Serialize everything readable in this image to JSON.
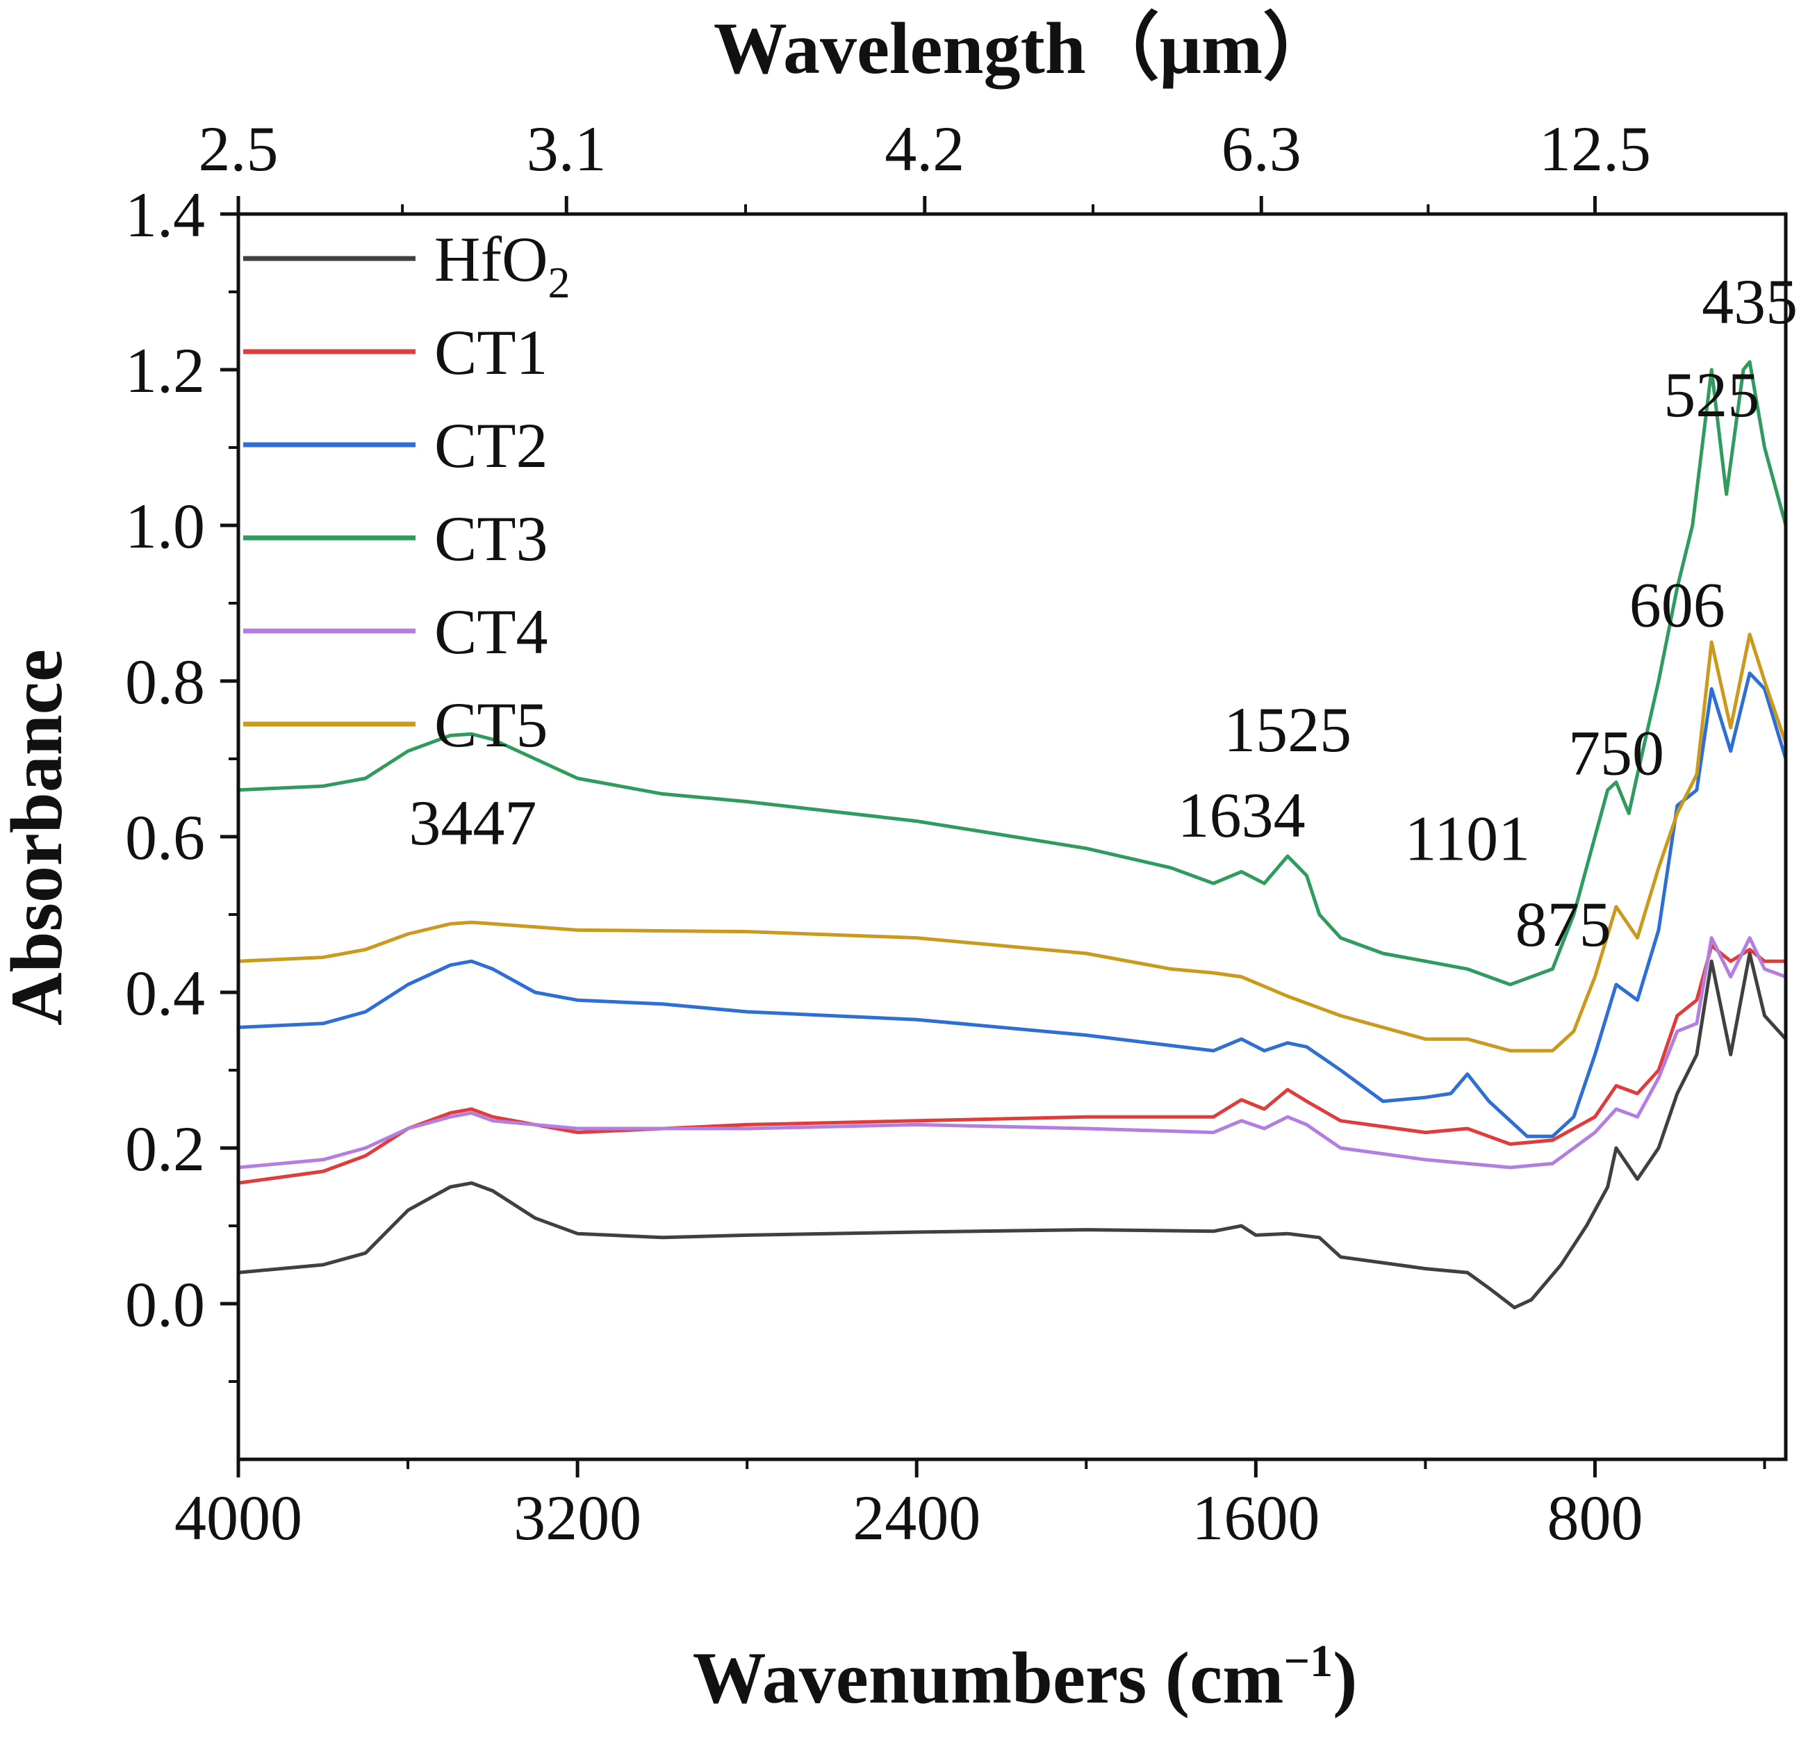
{
  "chart_data": {
    "type": "line",
    "xlabel": "Wavenumbers (cm",
    "xlabel_sup": "−1",
    "xlabel_suffix": ")",
    "ylabel": "Absorbance",
    "top_xlabel": "Wavelength（μm）",
    "xlim": [
      4000,
      350
    ],
    "ylim": [
      -0.2,
      1.4
    ],
    "xticks": [
      4000,
      3200,
      2400,
      1600,
      800
    ],
    "xtick_labels": [
      "4000",
      "3200",
      "2400",
      "1600",
      "800"
    ],
    "yticks": [
      0.0,
      0.2,
      0.4,
      0.6,
      0.8,
      1.0,
      1.2,
      1.4
    ],
    "ytick_labels": [
      "0.0",
      "0.2",
      "0.4",
      "0.6",
      "0.8",
      "1.0",
      "1.2",
      "1.4"
    ],
    "top_ticks": [
      {
        "wavenumber": 4000,
        "label": "2.5"
      },
      {
        "wavenumber": 3226,
        "label": "3.1"
      },
      {
        "wavenumber": 2381,
        "label": "4.2"
      },
      {
        "wavenumber": 1587,
        "label": "6.3"
      },
      {
        "wavenumber": 800,
        "label": "12.5"
      }
    ],
    "legend_position": "top-left",
    "series": [
      {
        "name": "HfO",
        "name_sub": "2",
        "color": "#404040",
        "points": [
          [
            4000,
            0.04
          ],
          [
            3800,
            0.05
          ],
          [
            3700,
            0.065
          ],
          [
            3600,
            0.12
          ],
          [
            3500,
            0.15
          ],
          [
            3450,
            0.155
          ],
          [
            3400,
            0.145
          ],
          [
            3300,
            0.11
          ],
          [
            3200,
            0.09
          ],
          [
            3000,
            0.085
          ],
          [
            2800,
            0.088
          ],
          [
            2400,
            0.092
          ],
          [
            2000,
            0.095
          ],
          [
            1700,
            0.093
          ],
          [
            1634,
            0.1
          ],
          [
            1600,
            0.088
          ],
          [
            1525,
            0.09
          ],
          [
            1450,
            0.085
          ],
          [
            1400,
            0.06
          ],
          [
            1200,
            0.045
          ],
          [
            1101,
            0.04
          ],
          [
            1050,
            0.02
          ],
          [
            990,
            -0.005
          ],
          [
            950,
            0.005
          ],
          [
            880,
            0.05
          ],
          [
            820,
            0.1
          ],
          [
            770,
            0.15
          ],
          [
            750,
            0.2
          ],
          [
            700,
            0.16
          ],
          [
            650,
            0.2
          ],
          [
            606,
            0.27
          ],
          [
            560,
            0.32
          ],
          [
            525,
            0.44
          ],
          [
            480,
            0.32
          ],
          [
            435,
            0.45
          ],
          [
            400,
            0.37
          ],
          [
            350,
            0.34
          ]
        ]
      },
      {
        "name": "CT1",
        "color": "#e03c3c",
        "points": [
          [
            4000,
            0.155
          ],
          [
            3800,
            0.17
          ],
          [
            3700,
            0.19
          ],
          [
            3600,
            0.225
          ],
          [
            3500,
            0.245
          ],
          [
            3450,
            0.25
          ],
          [
            3400,
            0.24
          ],
          [
            3200,
            0.22
          ],
          [
            2800,
            0.23
          ],
          [
            2400,
            0.235
          ],
          [
            2000,
            0.24
          ],
          [
            1700,
            0.24
          ],
          [
            1634,
            0.262
          ],
          [
            1580,
            0.25
          ],
          [
            1525,
            0.275
          ],
          [
            1480,
            0.26
          ],
          [
            1400,
            0.235
          ],
          [
            1200,
            0.22
          ],
          [
            1101,
            0.225
          ],
          [
            1000,
            0.205
          ],
          [
            900,
            0.21
          ],
          [
            800,
            0.24
          ],
          [
            750,
            0.28
          ],
          [
            700,
            0.27
          ],
          [
            650,
            0.3
          ],
          [
            606,
            0.37
          ],
          [
            560,
            0.39
          ],
          [
            525,
            0.46
          ],
          [
            480,
            0.44
          ],
          [
            435,
            0.455
          ],
          [
            400,
            0.44
          ],
          [
            350,
            0.44
          ]
        ]
      },
      {
        "name": "CT2",
        "color": "#2f6fd4",
        "points": [
          [
            4000,
            0.355
          ],
          [
            3800,
            0.36
          ],
          [
            3700,
            0.375
          ],
          [
            3600,
            0.41
          ],
          [
            3500,
            0.435
          ],
          [
            3450,
            0.44
          ],
          [
            3400,
            0.43
          ],
          [
            3300,
            0.4
          ],
          [
            3200,
            0.39
          ],
          [
            3000,
            0.385
          ],
          [
            2800,
            0.375
          ],
          [
            2400,
            0.365
          ],
          [
            2000,
            0.345
          ],
          [
            1700,
            0.325
          ],
          [
            1634,
            0.34
          ],
          [
            1580,
            0.325
          ],
          [
            1525,
            0.335
          ],
          [
            1480,
            0.33
          ],
          [
            1400,
            0.3
          ],
          [
            1300,
            0.26
          ],
          [
            1200,
            0.265
          ],
          [
            1140,
            0.27
          ],
          [
            1101,
            0.295
          ],
          [
            1050,
            0.26
          ],
          [
            960,
            0.215
          ],
          [
            900,
            0.215
          ],
          [
            850,
            0.24
          ],
          [
            800,
            0.32
          ],
          [
            750,
            0.41
          ],
          [
            700,
            0.39
          ],
          [
            650,
            0.48
          ],
          [
            606,
            0.64
          ],
          [
            560,
            0.66
          ],
          [
            525,
            0.79
          ],
          [
            480,
            0.71
          ],
          [
            435,
            0.81
          ],
          [
            400,
            0.79
          ],
          [
            350,
            0.7
          ]
        ]
      },
      {
        "name": "CT3",
        "color": "#2f9c5e",
        "points": [
          [
            4000,
            0.66
          ],
          [
            3800,
            0.665
          ],
          [
            3700,
            0.675
          ],
          [
            3600,
            0.71
          ],
          [
            3500,
            0.73
          ],
          [
            3450,
            0.732
          ],
          [
            3400,
            0.725
          ],
          [
            3300,
            0.7
          ],
          [
            3200,
            0.675
          ],
          [
            3000,
            0.655
          ],
          [
            2800,
            0.645
          ],
          [
            2400,
            0.62
          ],
          [
            2000,
            0.585
          ],
          [
            1800,
            0.56
          ],
          [
            1700,
            0.54
          ],
          [
            1634,
            0.555
          ],
          [
            1580,
            0.54
          ],
          [
            1525,
            0.575
          ],
          [
            1480,
            0.55
          ],
          [
            1450,
            0.5
          ],
          [
            1400,
            0.47
          ],
          [
            1300,
            0.45
          ],
          [
            1200,
            0.44
          ],
          [
            1101,
            0.43
          ],
          [
            1000,
            0.41
          ],
          [
            900,
            0.43
          ],
          [
            850,
            0.5
          ],
          [
            800,
            0.6
          ],
          [
            770,
            0.66
          ],
          [
            750,
            0.67
          ],
          [
            720,
            0.63
          ],
          [
            700,
            0.68
          ],
          [
            650,
            0.8
          ],
          [
            606,
            0.92
          ],
          [
            570,
            1.0
          ],
          [
            525,
            1.2
          ],
          [
            490,
            1.04
          ],
          [
            450,
            1.2
          ],
          [
            435,
            1.21
          ],
          [
            400,
            1.1
          ],
          [
            350,
            1.0
          ]
        ]
      },
      {
        "name": "CT4",
        "color": "#b47ee0",
        "points": [
          [
            4000,
            0.175
          ],
          [
            3800,
            0.185
          ],
          [
            3700,
            0.2
          ],
          [
            3600,
            0.225
          ],
          [
            3500,
            0.24
          ],
          [
            3450,
            0.245
          ],
          [
            3400,
            0.235
          ],
          [
            3200,
            0.225
          ],
          [
            2800,
            0.225
          ],
          [
            2400,
            0.23
          ],
          [
            2000,
            0.225
          ],
          [
            1700,
            0.22
          ],
          [
            1634,
            0.235
          ],
          [
            1580,
            0.225
          ],
          [
            1525,
            0.24
          ],
          [
            1480,
            0.23
          ],
          [
            1400,
            0.2
          ],
          [
            1200,
            0.185
          ],
          [
            1101,
            0.18
          ],
          [
            1000,
            0.175
          ],
          [
            900,
            0.18
          ],
          [
            800,
            0.22
          ],
          [
            750,
            0.25
          ],
          [
            700,
            0.24
          ],
          [
            650,
            0.29
          ],
          [
            606,
            0.35
          ],
          [
            560,
            0.36
          ],
          [
            525,
            0.47
          ],
          [
            480,
            0.42
          ],
          [
            435,
            0.47
          ],
          [
            400,
            0.43
          ],
          [
            350,
            0.42
          ]
        ]
      },
      {
        "name": "CT5",
        "color": "#c99a1e",
        "points": [
          [
            4000,
            0.44
          ],
          [
            3800,
            0.445
          ],
          [
            3700,
            0.455
          ],
          [
            3600,
            0.475
          ],
          [
            3500,
            0.488
          ],
          [
            3450,
            0.49
          ],
          [
            3400,
            0.488
          ],
          [
            3200,
            0.48
          ],
          [
            2800,
            0.478
          ],
          [
            2400,
            0.47
          ],
          [
            2000,
            0.45
          ],
          [
            1800,
            0.43
          ],
          [
            1700,
            0.425
          ],
          [
            1634,
            0.42
          ],
          [
            1525,
            0.395
          ],
          [
            1400,
            0.37
          ],
          [
            1200,
            0.34
          ],
          [
            1101,
            0.34
          ],
          [
            1000,
            0.325
          ],
          [
            900,
            0.325
          ],
          [
            850,
            0.35
          ],
          [
            800,
            0.42
          ],
          [
            750,
            0.51
          ],
          [
            700,
            0.47
          ],
          [
            650,
            0.56
          ],
          [
            606,
            0.63
          ],
          [
            560,
            0.68
          ],
          [
            525,
            0.85
          ],
          [
            480,
            0.74
          ],
          [
            435,
            0.86
          ],
          [
            400,
            0.8
          ],
          [
            350,
            0.72
          ]
        ]
      }
    ],
    "annotations": [
      {
        "text": "3447",
        "x": 3447,
        "y": 0.59
      },
      {
        "text": "1634",
        "x": 1634,
        "y": 0.6
      },
      {
        "text": "1525",
        "x": 1525,
        "y": 0.71
      },
      {
        "text": "1101",
        "x": 1101,
        "y": 0.57
      },
      {
        "text": "875",
        "x": 875,
        "y": 0.46
      },
      {
        "text": "750",
        "x": 750,
        "y": 0.68
      },
      {
        "text": "606",
        "x": 606,
        "y": 0.87
      },
      {
        "text": "525",
        "x": 525,
        "y": 1.14
      },
      {
        "text": "435",
        "x": 435,
        "y": 1.26
      }
    ]
  }
}
